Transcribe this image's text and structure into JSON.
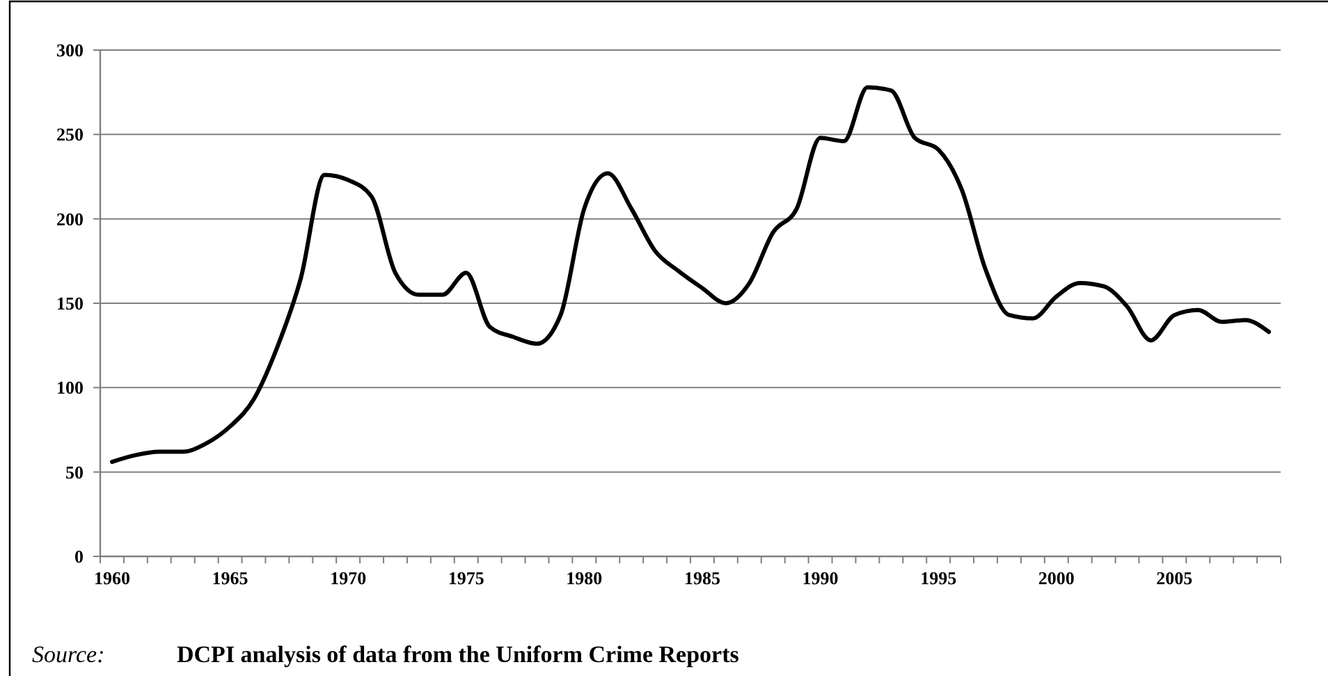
{
  "chart_data": {
    "type": "line",
    "categories": [
      "1960",
      null,
      null,
      null,
      null,
      "1965",
      null,
      null,
      null,
      null,
      "1970",
      null,
      null,
      null,
      null,
      "1975",
      null,
      null,
      null,
      null,
      "1980",
      null,
      null,
      null,
      null,
      "1985",
      null,
      null,
      null,
      null,
      "1990",
      null,
      null,
      null,
      null,
      "1995",
      null,
      null,
      null,
      null,
      "2000",
      null,
      null,
      null,
      null,
      "2005",
      null,
      null,
      null,
      null
    ],
    "series": [
      {
        "color": "#000000",
        "values": [
          56,
          60,
          62,
          62,
          67,
          77,
          93,
          124,
          165,
          226,
          223,
          213,
          168,
          155,
          155,
          168,
          136,
          130,
          126,
          143,
          206,
          227,
          206,
          181,
          169,
          159,
          150,
          162,
          192,
          206,
          248,
          246,
          278,
          276,
          248,
          241,
          217,
          170,
          143,
          141,
          154,
          162,
          160,
          148,
          128,
          143,
          146,
          139,
          140,
          133
        ]
      }
    ],
    "ylim": [
      0,
      300
    ],
    "yticks": [
      0,
      50,
      100,
      150,
      200,
      250,
      300
    ],
    "grid": "y",
    "marker": "none",
    "line_style": "solid",
    "annotations": [
      "Source:",
      "DCPI analysis of data from the Uniform Crime Reports"
    ]
  }
}
